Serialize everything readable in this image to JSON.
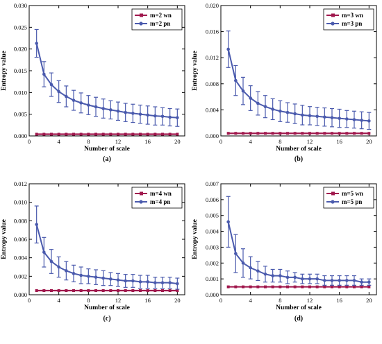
{
  "colors": {
    "wn": "#a0184d",
    "pn": "#4a5aad",
    "error_bar": "#4a5aad",
    "axis": "#000000"
  },
  "chart_data": [
    {
      "type": "line",
      "caption": "(a)",
      "xlabel": "Number of scale",
      "ylabel": "Entropy value",
      "xlim": [
        0,
        21
      ],
      "ylim": [
        0,
        0.03
      ],
      "xticks": [
        0,
        4,
        8,
        12,
        16,
        20
      ],
      "yticks": [
        0.0,
        0.005,
        0.01,
        0.015,
        0.02,
        0.025,
        0.03
      ],
      "ytick_labels": [
        "0.000",
        "0.005",
        "0.010",
        "0.015",
        "0.020",
        "0.025",
        "0.030"
      ],
      "legend": "top-right",
      "series": [
        {
          "name": "m=2 wn",
          "key": "wn",
          "x": [
            1,
            2,
            3,
            4,
            5,
            6,
            7,
            8,
            9,
            10,
            11,
            12,
            13,
            14,
            15,
            16,
            17,
            18,
            19,
            20
          ],
          "y": [
            0.0004,
            0.0004,
            0.0004,
            0.0004,
            0.0004,
            0.0004,
            0.0004,
            0.0004,
            0.0004,
            0.0004,
            0.0004,
            0.0004,
            0.0004,
            0.0004,
            0.0004,
            0.0004,
            0.0004,
            0.0004,
            0.0004,
            0.0004
          ]
        },
        {
          "name": "m=2 pn",
          "key": "pn",
          "x": [
            1,
            2,
            3,
            4,
            5,
            6,
            7,
            8,
            9,
            10,
            11,
            12,
            13,
            14,
            15,
            16,
            17,
            18,
            19,
            20
          ],
          "y": [
            0.0213,
            0.0142,
            0.0118,
            0.0102,
            0.0091,
            0.0082,
            0.0076,
            0.0071,
            0.0067,
            0.0063,
            0.006,
            0.0057,
            0.0054,
            0.0052,
            0.005,
            0.0048,
            0.0046,
            0.0045,
            0.0043,
            0.0042
          ],
          "err": [
            0.0032,
            0.0029,
            0.0027,
            0.0025,
            0.0024,
            0.0023,
            0.0023,
            0.0022,
            0.0022,
            0.0022,
            0.0021,
            0.0021,
            0.0021,
            0.0021,
            0.0021,
            0.0021,
            0.0021,
            0.002,
            0.002,
            0.002
          ]
        }
      ]
    },
    {
      "type": "line",
      "caption": "(b)",
      "xlabel": "Number of scale",
      "ylabel": "Entropy value",
      "xlim": [
        0,
        21
      ],
      "ylim": [
        0,
        0.02
      ],
      "xticks": [
        0,
        4,
        8,
        12,
        16,
        20
      ],
      "yticks": [
        0.0,
        0.004,
        0.008,
        0.012,
        0.016,
        0.02
      ],
      "ytick_labels": [
        "0.000",
        "0.004",
        "0.008",
        "0.012",
        "0.016",
        "0.020"
      ],
      "legend": "top-right",
      "series": [
        {
          "name": "m=3 wn",
          "key": "wn",
          "x": [
            1,
            2,
            3,
            4,
            5,
            6,
            7,
            8,
            9,
            10,
            11,
            12,
            13,
            14,
            15,
            16,
            17,
            18,
            19,
            20
          ],
          "y": [
            0.0004,
            0.0004,
            0.0004,
            0.0004,
            0.0004,
            0.0004,
            0.0004,
            0.0004,
            0.0004,
            0.0004,
            0.0004,
            0.0004,
            0.0004,
            0.0004,
            0.0004,
            0.0004,
            0.0004,
            0.0004,
            0.0004,
            0.0004
          ]
        },
        {
          "name": "m=3 pn",
          "key": "pn",
          "x": [
            1,
            2,
            3,
            4,
            5,
            6,
            7,
            8,
            9,
            10,
            11,
            12,
            13,
            14,
            15,
            16,
            17,
            18,
            19,
            20
          ],
          "y": [
            0.0133,
            0.0085,
            0.0069,
            0.0058,
            0.005,
            0.0045,
            0.0041,
            0.0038,
            0.0036,
            0.0034,
            0.0032,
            0.0031,
            0.003,
            0.0029,
            0.0028,
            0.0027,
            0.0026,
            0.0025,
            0.0024,
            0.0023
          ],
          "err": [
            0.0028,
            0.0023,
            0.0021,
            0.0019,
            0.0018,
            0.0017,
            0.0016,
            0.0016,
            0.0015,
            0.0015,
            0.0015,
            0.0014,
            0.0014,
            0.0014,
            0.0014,
            0.0014,
            0.0013,
            0.0013,
            0.0013,
            0.0013
          ]
        }
      ]
    },
    {
      "type": "line",
      "caption": "(c)",
      "xlabel": "Number of scale",
      "ylabel": "Entropy value",
      "xlim": [
        0,
        21
      ],
      "ylim": [
        0,
        0.012
      ],
      "xticks": [
        0,
        4,
        8,
        12,
        16,
        20
      ],
      "yticks": [
        0.0,
        0.002,
        0.004,
        0.006,
        0.008,
        0.01,
        0.012
      ],
      "ytick_labels": [
        "0.000",
        "0.002",
        "0.004",
        "0.006",
        "0.008",
        "0.010",
        "0.012"
      ],
      "legend": "top-right",
      "series": [
        {
          "name": "m=4 wn",
          "key": "wn",
          "x": [
            1,
            2,
            3,
            4,
            5,
            6,
            7,
            8,
            9,
            10,
            11,
            12,
            13,
            14,
            15,
            16,
            17,
            18,
            19,
            20
          ],
          "y": [
            0.00045,
            0.00045,
            0.00045,
            0.00045,
            0.00045,
            0.00045,
            0.00045,
            0.00045,
            0.00045,
            0.00045,
            0.00045,
            0.00045,
            0.00045,
            0.00045,
            0.00045,
            0.00045,
            0.00045,
            0.00045,
            0.00045,
            0.00045
          ]
        },
        {
          "name": "m=4 pn",
          "key": "pn",
          "x": [
            1,
            2,
            3,
            4,
            5,
            6,
            7,
            8,
            9,
            10,
            11,
            12,
            13,
            14,
            15,
            16,
            17,
            18,
            19,
            20
          ],
          "y": [
            0.0076,
            0.0046,
            0.0036,
            0.003,
            0.0026,
            0.0023,
            0.0021,
            0.002,
            0.0019,
            0.0018,
            0.0017,
            0.0016,
            0.0015,
            0.0015,
            0.0014,
            0.0014,
            0.0013,
            0.0013,
            0.0013,
            0.0012
          ],
          "err": [
            0.002,
            0.0016,
            0.0013,
            0.0011,
            0.001,
            0.0009,
            0.0009,
            0.0008,
            0.0008,
            0.0008,
            0.0007,
            0.0007,
            0.0007,
            0.0007,
            0.0007,
            0.0007,
            0.0006,
            0.0006,
            0.0006,
            0.0006
          ]
        }
      ]
    },
    {
      "type": "line",
      "caption": "(d)",
      "xlabel": "Number of scale",
      "ylabel": "Entropy value",
      "xlim": [
        0,
        21
      ],
      "ylim": [
        0,
        0.007
      ],
      "xticks": [
        0,
        4,
        8,
        12,
        16,
        20
      ],
      "yticks": [
        0.0,
        0.001,
        0.002,
        0.003,
        0.004,
        0.005,
        0.006,
        0.007
      ],
      "ytick_labels": [
        "0.000",
        "0.001",
        "0.002",
        "0.003",
        "0.004",
        "0.005",
        "0.006",
        "0.007"
      ],
      "legend": "top-right",
      "series": [
        {
          "name": "m=5 wn",
          "key": "wn",
          "x": [
            1,
            2,
            3,
            4,
            5,
            6,
            7,
            8,
            9,
            10,
            11,
            12,
            13,
            14,
            15,
            16,
            17,
            18,
            19,
            20
          ],
          "y": [
            0.0005,
            0.0005,
            0.0005,
            0.0005,
            0.0005,
            0.0005,
            0.0005,
            0.0005,
            0.0005,
            0.0005,
            0.0005,
            0.0005,
            0.0005,
            0.0005,
            0.0005,
            0.0005,
            0.0005,
            0.0005,
            0.0005,
            0.0005
          ]
        },
        {
          "name": "m=5 pn",
          "key": "pn",
          "x": [
            1,
            2,
            3,
            4,
            5,
            6,
            7,
            8,
            9,
            10,
            11,
            12,
            13,
            14,
            15,
            16,
            17,
            18,
            19,
            20
          ],
          "y": [
            0.0046,
            0.0026,
            0.002,
            0.0017,
            0.0015,
            0.0013,
            0.0012,
            0.0012,
            0.0011,
            0.0011,
            0.001,
            0.001,
            0.001,
            0.0009,
            0.0009,
            0.0009,
            0.0009,
            0.0009,
            0.0008,
            0.0008
          ],
          "err": [
            0.0016,
            0.0012,
            0.0009,
            0.0007,
            0.0006,
            0.0005,
            0.0004,
            0.0004,
            0.0004,
            0.0003,
            0.0003,
            0.0003,
            0.0003,
            0.0003,
            0.0003,
            0.0003,
            0.0003,
            0.0003,
            0.0002,
            0.0002
          ]
        }
      ]
    }
  ]
}
